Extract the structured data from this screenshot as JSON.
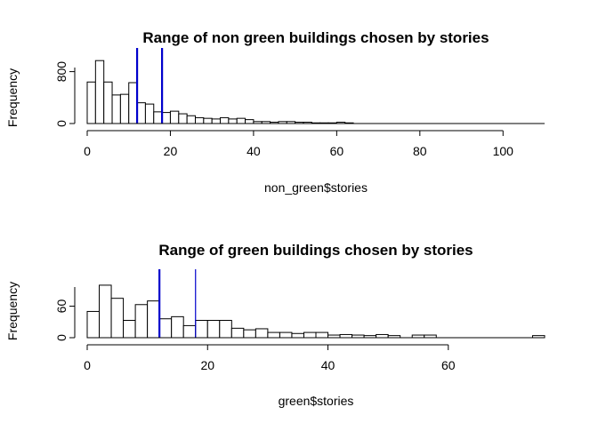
{
  "chart_data": [
    {
      "type": "bar",
      "title": "Range of non green buildings chosen by stories",
      "xlabel": "non_green$stories",
      "ylabel": "Frequency",
      "x_ticks": [
        "0",
        "20",
        "40",
        "60",
        "80",
        "100"
      ],
      "y_ticks": [
        "0",
        "800"
      ],
      "xlim": [
        0,
        110
      ],
      "ylim": [
        0,
        1000
      ],
      "bin_width": 2,
      "bin_starts": [
        0,
        2,
        4,
        6,
        8,
        10,
        12,
        14,
        16,
        18,
        20,
        22,
        24,
        26,
        28,
        30,
        32,
        34,
        36,
        38,
        40,
        42,
        44,
        46,
        48,
        50,
        52,
        54,
        56,
        58,
        60,
        62
      ],
      "values": [
        640,
        970,
        640,
        440,
        450,
        630,
        320,
        300,
        180,
        170,
        190,
        150,
        120,
        90,
        80,
        70,
        90,
        70,
        80,
        60,
        30,
        30,
        20,
        30,
        30,
        20,
        20,
        10,
        10,
        10,
        20,
        10
      ],
      "reference_lines": [
        {
          "x": 12,
          "color": "#0000cc"
        },
        {
          "x": 18,
          "color": "#0000cc"
        }
      ],
      "grid": false
    },
    {
      "type": "bar",
      "title": "Range of green buildings chosen by stories",
      "xlabel": "green$stories",
      "ylabel": "Frequency",
      "x_ticks": [
        "0",
        "20",
        "40",
        "60"
      ],
      "y_ticks": [
        "0",
        "60"
      ],
      "xlim": [
        0,
        76
      ],
      "ylim": [
        0,
        110
      ],
      "bin_width": 2,
      "bin_starts": [
        0,
        2,
        4,
        6,
        8,
        10,
        12,
        14,
        16,
        18,
        20,
        22,
        24,
        26,
        28,
        30,
        32,
        34,
        36,
        38,
        40,
        42,
        44,
        46,
        48,
        50,
        52,
        54,
        56,
        58,
        60,
        62,
        64,
        66,
        68,
        70,
        72,
        74
      ],
      "values": [
        50,
        100,
        75,
        33,
        63,
        70,
        36,
        40,
        23,
        33,
        33,
        33,
        18,
        15,
        17,
        10,
        10,
        8,
        10,
        10,
        5,
        6,
        5,
        4,
        6,
        4,
        0,
        5,
        5,
        0,
        0,
        0,
        0,
        0,
        0,
        0,
        0,
        4
      ],
      "reference_lines": [
        {
          "x": 12,
          "color": "#0000cc"
        },
        {
          "x": 18,
          "color": "#0000cc"
        }
      ],
      "grid": false
    }
  ]
}
